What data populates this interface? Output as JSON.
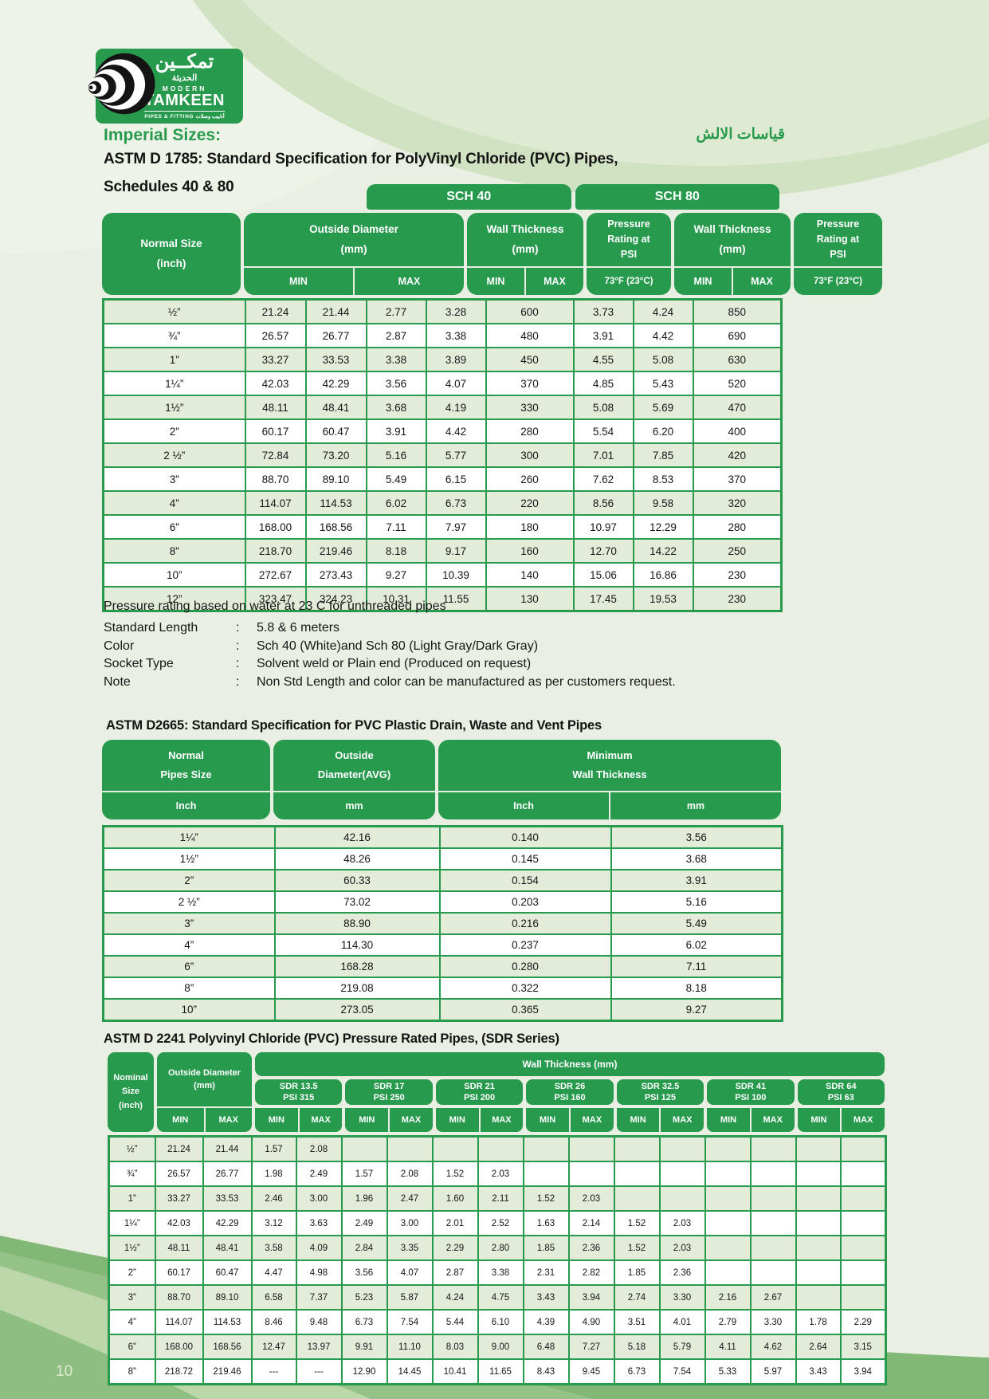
{
  "logo": {
    "arabic_main": "تمكــين",
    "arabic_sub": "الحديثة",
    "modern": "MODERN",
    "tamkeen": "TAMKEEN",
    "tagline": "PIPES & FITTING",
    "tagline_ar": "أنابيب وصلات"
  },
  "header": {
    "imperial": "Imperial Sizes:",
    "arabic_title": "قياسات الالش",
    "title_line1": "ASTM D 1785: Standard Specification for PolyVinyl Chloride (PVC) Pipes,",
    "title_line2": "Schedules 40 & 80"
  },
  "labels": {
    "min": "MIN",
    "max": "MAX",
    "temp": "73°F (23°C)",
    "colon": ":"
  },
  "table1": {
    "sch40": "SCH 40",
    "sch80": "SCH 80",
    "normal_size": "Normal Size",
    "normal_size_sub": "(inch)",
    "od": "Outside Diameter",
    "od_sub": "(mm)",
    "wt": "Wall Thickness",
    "wt_sub": "(mm)",
    "pr1": "Pressure",
    "pr2": "Rating at",
    "pr3": "PSI",
    "rows": [
      [
        "½”",
        "21.24",
        "21.44",
        "2.77",
        "3.28",
        "600",
        "3.73",
        "4.24",
        "850"
      ],
      [
        "¾”",
        "26.57",
        "26.77",
        "2.87",
        "3.38",
        "480",
        "3.91",
        "4.42",
        "690"
      ],
      [
        "1”",
        "33.27",
        "33.53",
        "3.38",
        "3.89",
        "450",
        "4.55",
        "5.08",
        "630"
      ],
      [
        "1¼”",
        "42.03",
        "42.29",
        "3.56",
        "4.07",
        "370",
        "4.85",
        "5.43",
        "520"
      ],
      [
        "1½”",
        "48.11",
        "48.41",
        "3.68",
        "4.19",
        "330",
        "5.08",
        "5.69",
        "470"
      ],
      [
        "2”",
        "60.17",
        "60.47",
        "3.91",
        "4.42",
        "280",
        "5.54",
        "6.20",
        "400"
      ],
      [
        "2 ½”",
        "72.84",
        "73.20",
        "5.16",
        "5.77",
        "300",
        "7.01",
        "7.85",
        "420"
      ],
      [
        "3”",
        "88.70",
        "89.10",
        "5.49",
        "6.15",
        "260",
        "7.62",
        "8.53",
        "370"
      ],
      [
        "4”",
        "114.07",
        "114.53",
        "6.02",
        "6.73",
        "220",
        "8.56",
        "9.58",
        "320"
      ],
      [
        "6”",
        "168.00",
        "168.56",
        "7.11",
        "7.97",
        "180",
        "10.97",
        "12.29",
        "280"
      ],
      [
        "8”",
        "218.70",
        "219.46",
        "8.18",
        "9.17",
        "160",
        "12.70",
        "14.22",
        "250"
      ],
      [
        "10”",
        "272.67",
        "273.43",
        "9.27",
        "10.39",
        "140",
        "15.06",
        "16.86",
        "230"
      ],
      [
        "12”",
        "323.47",
        "324.23",
        "10.31",
        "11.55",
        "130",
        "17.45",
        "19.53",
        "230"
      ]
    ]
  },
  "notes": {
    "intro": "Pressure rating based on water at 23 C for unthreaded pipes",
    "items": [
      {
        "label": "Standard Length",
        "value": "5.8 & 6 meters"
      },
      {
        "label": "Color",
        "value": "Sch 40 (White)and Sch 80 (Light Gray/Dark Gray)"
      },
      {
        "label": "Socket Type",
        "value": "Solvent weld or Plain end (Produced on request)"
      },
      {
        "label": "Note",
        "value": "Non Std Length and color can be manufactured as per customers request."
      }
    ]
  },
  "section2": {
    "title": "ASTM D2665: Standard Specification for PVC Plastic Drain, Waste and Vent Pipes",
    "normal1": "Normal",
    "normal2": "Pipes Size",
    "od1": "Outside",
    "od2": "Diameter(AVG)",
    "wt1": "Minimum",
    "wt2": "Wall Thickness",
    "inch": "Inch",
    "mm": "mm",
    "rows": [
      [
        "1¼”",
        "42.16",
        "0.140",
        "3.56"
      ],
      [
        "1½”",
        "48.26",
        "0.145",
        "3.68"
      ],
      [
        "2”",
        "60.33",
        "0.154",
        "3.91"
      ],
      [
        "2 ½”",
        "73.02",
        "0.203",
        "5.16"
      ],
      [
        "3”",
        "88.90",
        "0.216",
        "5.49"
      ],
      [
        "4”",
        "114.30",
        "0.237",
        "6.02"
      ],
      [
        "6”",
        "168.28",
        "0.280",
        "7.11"
      ],
      [
        "8”",
        "219.08",
        "0.322",
        "8.18"
      ],
      [
        "10”",
        "273.05",
        "0.365",
        "9.27"
      ]
    ]
  },
  "section3": {
    "title": "ASTM D 2241 Polyvinyl Chloride (PVC) Pressure Rated Pipes, (SDR Series)",
    "nominal1": "Nominal",
    "nominal2": "Size",
    "nominal3": "(inch)",
    "od": "Outside Diameter",
    "od_sub": "(mm)",
    "wall": "Wall Thickness (mm)",
    "sdr_groups": [
      {
        "name": "SDR  13.5",
        "psi": "PSI 315"
      },
      {
        "name": "SDR  17",
        "psi": "PSI 250"
      },
      {
        "name": "SDR  21",
        "psi": "PSI 200"
      },
      {
        "name": "SDR  26",
        "psi": "PSI 160"
      },
      {
        "name": "SDR  32.5",
        "psi": "PSI 125"
      },
      {
        "name": "SDR  41",
        "psi": "PSI 100"
      },
      {
        "name": "SDR  64",
        "psi": "PSI 63"
      }
    ],
    "rows": [
      [
        "½”",
        "21.24",
        "21.44",
        "1.57",
        "2.08",
        "",
        "",
        "",
        "",
        "",
        "",
        "",
        "",
        "",
        "",
        "",
        ""
      ],
      [
        "¾”",
        "26.57",
        "26.77",
        "1.98",
        "2.49",
        "1.57",
        "2.08",
        "1.52",
        "2.03",
        "",
        "",
        "",
        "",
        "",
        "",
        "",
        ""
      ],
      [
        "1”",
        "33.27",
        "33.53",
        "2.46",
        "3.00",
        "1.96",
        "2.47",
        "1.60",
        "2.11",
        "1.52",
        "2.03",
        "",
        "",
        "",
        "",
        "",
        ""
      ],
      [
        "1¼”",
        "42.03",
        "42.29",
        "3.12",
        "3.63",
        "2.49",
        "3.00",
        "2.01",
        "2.52",
        "1.63",
        "2.14",
        "1.52",
        "2.03",
        "",
        "",
        "",
        ""
      ],
      [
        "1½”",
        "48.11",
        "48.41",
        "3.58",
        "4.09",
        "2.84",
        "3.35",
        "2.29",
        "2.80",
        "1.85",
        "2.36",
        "1.52",
        "2.03",
        "",
        "",
        "",
        ""
      ],
      [
        "2”",
        "60.17",
        "60.47",
        "4.47",
        "4.98",
        "3.56",
        "4.07",
        "2.87",
        "3.38",
        "2.31",
        "2.82",
        "1.85",
        "2.36",
        "",
        "",
        "",
        ""
      ],
      [
        "3”",
        "88.70",
        "89.10",
        "6.58",
        "7.37",
        "5.23",
        "5.87",
        "4.24",
        "4.75",
        "3.43",
        "3.94",
        "2.74",
        "3.30",
        "2.16",
        "2.67",
        "",
        ""
      ],
      [
        "4”",
        "114.07",
        "114.53",
        "8.46",
        "9.48",
        "6.73",
        "7.54",
        "5.44",
        "6.10",
        "4.39",
        "4.90",
        "3.51",
        "4.01",
        "2.79",
        "3.30",
        "1.78",
        "2.29"
      ],
      [
        "6”",
        "168.00",
        "168.56",
        "12.47",
        "13.97",
        "9.91",
        "11.10",
        "8.03",
        "9.00",
        "6.48",
        "7.27",
        "5.18",
        "5.79",
        "4.11",
        "4.62",
        "2.64",
        "3.15"
      ],
      [
        "8”",
        "218.72",
        "219.46",
        "---",
        "---",
        "12.90",
        "14.45",
        "10.41",
        "11.65",
        "8.43",
        "9.45",
        "6.73",
        "7.54",
        "5.33",
        "5.97",
        "3.43",
        "3.94"
      ]
    ]
  },
  "footer": {
    "page": "10"
  }
}
